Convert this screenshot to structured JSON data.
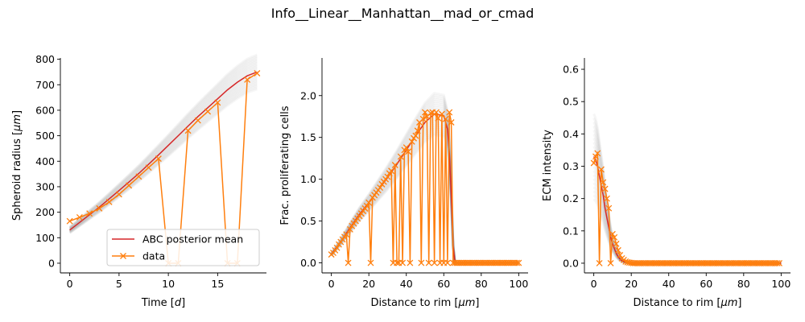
{
  "figure": {
    "title": "Info__Linear__Manhattan__mad_or_cmad",
    "colors": {
      "mean": "#d62728",
      "data": "#ff7f0e",
      "band": "#808080"
    }
  },
  "chart_data": [
    {
      "type": "line",
      "xlabel": "Time [d]",
      "ylabel": "Spheroid radius [μm]",
      "xlim": [
        -0.95,
        19.95
      ],
      "ylim": [
        -38,
        805
      ],
      "xticks": [
        0,
        5,
        10,
        15
      ],
      "yticks": [
        0,
        100,
        200,
        300,
        400,
        500,
        600,
        700,
        800
      ],
      "legend": {
        "placement": "lower-right",
        "entries": [
          "ABC posterior mean",
          "data"
        ]
      },
      "band_spread": 0.09,
      "mean": {
        "name": "ABC posterior mean",
        "x": [
          0,
          1,
          2,
          3,
          4,
          5,
          6,
          7,
          8,
          9,
          10,
          11,
          12,
          13,
          14,
          15,
          16,
          17,
          18,
          19
        ],
        "y": [
          130,
          160,
          190,
          220,
          252,
          285,
          318,
          352,
          388,
          425,
          462,
          500,
          538,
          575,
          610,
          645,
          680,
          710,
          735,
          750
        ]
      },
      "data": {
        "name": "data",
        "x": [
          0,
          1,
          2,
          3,
          4,
          5,
          6,
          7,
          8,
          9,
          10,
          11,
          12,
          13,
          14,
          15,
          16,
          17,
          18,
          19
        ],
        "y": [
          165,
          180,
          195,
          215,
          240,
          270,
          305,
          340,
          375,
          410,
          0,
          0,
          520,
          560,
          595,
          630,
          0,
          0,
          720,
          745
        ]
      }
    },
    {
      "type": "line",
      "xlabel": "Distance to rim [μm]",
      "ylabel": "Frac. proliferating cells",
      "xlim": [
        -5,
        105
      ],
      "ylim": [
        -0.12,
        2.45
      ],
      "xticks": [
        0,
        20,
        40,
        60,
        80,
        100
      ],
      "yticks": [
        0.0,
        0.5,
        1.0,
        1.5,
        2.0
      ],
      "band_spread": 0.14,
      "mean": {
        "name": "ABC posterior mean",
        "x": [
          0,
          5,
          10,
          15,
          20,
          25,
          30,
          35,
          40,
          45,
          50,
          55,
          60,
          62,
          63,
          64,
          65,
          66,
          70,
          80,
          90,
          100
        ],
        "y": [
          0.1,
          0.25,
          0.42,
          0.58,
          0.72,
          0.87,
          1.02,
          1.18,
          1.35,
          1.52,
          1.68,
          1.78,
          1.76,
          1.6,
          1.3,
          0.8,
          0.2,
          0.0,
          0.0,
          0.0,
          0.0,
          0.0
        ]
      },
      "data": {
        "name": "data",
        "x": [
          0,
          1,
          2,
          3,
          4,
          5,
          6,
          7,
          8,
          9,
          10,
          11,
          12,
          13,
          14,
          15,
          16,
          17,
          18,
          19,
          20,
          21,
          22,
          23,
          24,
          25,
          26,
          27,
          28,
          29,
          30,
          31,
          32,
          33,
          34,
          35,
          36,
          37,
          38,
          39,
          40,
          41,
          42,
          43,
          44,
          45,
          46,
          47,
          48,
          49,
          50,
          51,
          52,
          53,
          54,
          55,
          56,
          57,
          58,
          59,
          60,
          61,
          62,
          63,
          64,
          65,
          66,
          67,
          68,
          69,
          70,
          71,
          72,
          73,
          74,
          75,
          76,
          77,
          78,
          79,
          80,
          81,
          82,
          83,
          84,
          85,
          86,
          87,
          88,
          89,
          90,
          91,
          92,
          93,
          94,
          95,
          96,
          97,
          98,
          99,
          100
        ],
        "y": [
          0.1,
          0.12,
          0.15,
          0.18,
          0.22,
          0.25,
          0.28,
          0.31,
          0.34,
          0.0,
          0.4,
          0.44,
          0.47,
          0.5,
          0.53,
          0.56,
          0.59,
          0.62,
          0.65,
          0.68,
          0.72,
          0.0,
          0.78,
          0.81,
          0.84,
          0.87,
          0.9,
          0.94,
          0.97,
          1.0,
          1.03,
          1.07,
          1.1,
          0.0,
          1.17,
          0.0,
          0.0,
          1.27,
          0.0,
          1.35,
          1.38,
          1.33,
          0.0,
          1.45,
          1.49,
          1.52,
          1.58,
          1.68,
          0.0,
          1.72,
          1.8,
          1.75,
          0.0,
          1.79,
          1.8,
          0.0,
          1.8,
          1.73,
          0.0,
          1.78,
          0.0,
          1.72,
          0.0,
          1.8,
          1.68,
          0.0,
          0.0,
          0.0,
          0.0,
          0.0,
          0.0,
          0.0,
          0.0,
          0.0,
          0.0,
          0.0,
          0.0,
          0.0,
          0.0,
          0.0,
          0.0,
          0.0,
          0.0,
          0.0,
          0.0,
          0.0,
          0.0,
          0.0,
          0.0,
          0.0,
          0.0,
          0.0,
          0.0,
          0.0,
          0.0,
          0.0,
          0.0,
          0.0,
          0.0,
          0.0,
          0.0
        ]
      }
    },
    {
      "type": "line",
      "xlabel": "Distance to rim [μm]",
      "ylabel": "ECM intensity",
      "xlim": [
        -5,
        105
      ],
      "ylim": [
        -0.03,
        0.635
      ],
      "xticks": [
        0,
        20,
        40,
        60,
        80,
        100
      ],
      "yticks": [
        0.0,
        0.1,
        0.2,
        0.3,
        0.4,
        0.5,
        0.6
      ],
      "band_spread": 0.4,
      "mean": {
        "name": "ABC posterior mean",
        "x": [
          0,
          1,
          2,
          3,
          4,
          5,
          6,
          7,
          8,
          9,
          10,
          11,
          12,
          13,
          14,
          15,
          16,
          17,
          18,
          19,
          20,
          25,
          30,
          40,
          60,
          80,
          100
        ],
        "y": [
          0.33,
          0.32,
          0.3,
          0.27,
          0.24,
          0.21,
          0.17,
          0.14,
          0.11,
          0.08,
          0.06,
          0.045,
          0.03,
          0.02,
          0.013,
          0.008,
          0.005,
          0.003,
          0.002,
          0.001,
          0.0,
          0.0,
          0.0,
          0.0,
          0.0,
          0.0,
          0.0
        ]
      },
      "data": {
        "name": "data",
        "x": [
          0,
          1,
          2,
          3,
          4,
          5,
          6,
          7,
          8,
          9,
          10,
          11,
          12,
          13,
          14,
          15,
          16,
          17,
          18,
          19,
          20,
          21,
          22,
          23,
          24,
          25,
          26,
          27,
          28,
          29,
          30,
          31,
          32,
          33,
          34,
          35,
          36,
          37,
          38,
          39,
          40,
          41,
          42,
          43,
          44,
          45,
          46,
          47,
          48,
          49,
          50,
          51,
          52,
          53,
          54,
          55,
          56,
          57,
          58,
          59,
          60,
          61,
          62,
          63,
          64,
          65,
          66,
          67,
          68,
          69,
          70,
          71,
          72,
          73,
          74,
          75,
          76,
          77,
          78,
          79,
          80,
          81,
          82,
          83,
          84,
          85,
          86,
          87,
          88,
          89,
          90,
          91,
          92,
          93,
          94,
          95,
          96,
          97,
          98,
          99
        ],
        "y": [
          0.31,
          0.33,
          0.34,
          0.0,
          0.29,
          0.25,
          0.23,
          0.2,
          0.17,
          0.0,
          0.09,
          0.08,
          0.06,
          0.04,
          0.025,
          0.015,
          0.01,
          0.005,
          0.003,
          0.002,
          0.001,
          0.0,
          0.0,
          0.0,
          0.0,
          0.0,
          0.0,
          0.0,
          0.0,
          0.0,
          0.0,
          0.0,
          0.0,
          0.0,
          0.0,
          0.0,
          0.0,
          0.0,
          0.0,
          0.0,
          0.0,
          0.0,
          0.0,
          0.0,
          0.0,
          0.0,
          0.0,
          0.0,
          0.0,
          0.0,
          0.0,
          0.0,
          0.0,
          0.0,
          0.0,
          0.0,
          0.0,
          0.0,
          0.0,
          0.0,
          0.0,
          0.0,
          0.0,
          0.0,
          0.0,
          0.0,
          0.0,
          0.0,
          0.0,
          0.0,
          0.0,
          0.0,
          0.0,
          0.0,
          0.0,
          0.0,
          0.0,
          0.0,
          0.0,
          0.0,
          0.0,
          0.0,
          0.0,
          0.0,
          0.0,
          0.0,
          0.0,
          0.0,
          0.0,
          0.0,
          0.0,
          0.0,
          0.0,
          0.0,
          0.0,
          0.0,
          0.0,
          0.0,
          0.0,
          0.0
        ]
      }
    }
  ]
}
